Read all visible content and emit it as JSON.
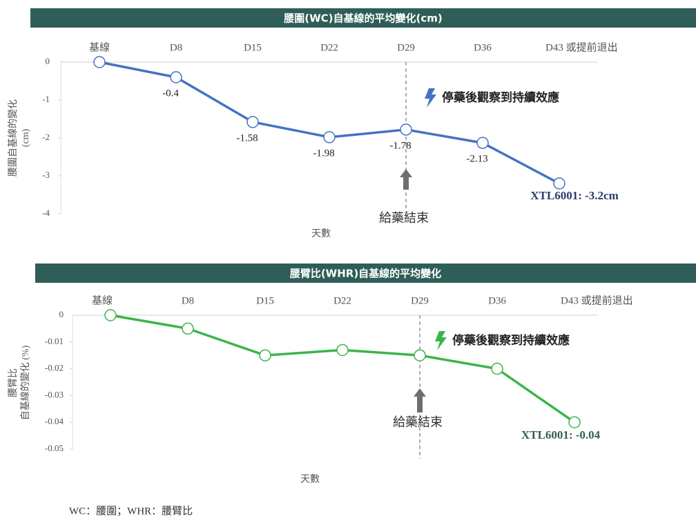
{
  "chart_data": [
    {
      "type": "line",
      "title": "腰圍(WC)自基線的平均變化(cm)",
      "categories": [
        "基線",
        "D8",
        "D15",
        "D22",
        "D29",
        "D36",
        "D43 或提前退出"
      ],
      "values": [
        0,
        -0.4,
        -1.58,
        -1.98,
        -1.78,
        -2.13,
        -3.2
      ],
      "value_labels": [
        null,
        "-0.4",
        "-1.58",
        "-1.98",
        "-1.78",
        "-2.13",
        null
      ],
      "color": "#4472c4",
      "ylim": [
        0,
        -4
      ],
      "yticks": [
        0,
        -1,
        -2,
        -3,
        -4
      ],
      "y_label": [
        "腰圍自基線的變化",
        "(cm)"
      ],
      "x_label": "天數",
      "note": "停藥後觀察到持續效應",
      "end_of_dosing": "給藥結束",
      "result": "XTL6001: -3.2cm"
    },
    {
      "type": "line",
      "title": "腰臂比(WHR)自基線的平均變化",
      "categories": [
        "基線",
        "D8",
        "D15",
        "D22",
        "D29",
        "D36",
        "D43 或提前退出"
      ],
      "values": [
        0,
        -0.005,
        -0.015,
        -0.013,
        -0.015,
        -0.02,
        -0.04
      ],
      "color": "#3ab54a",
      "ylim": [
        0,
        -0.05
      ],
      "yticks": [
        0,
        -0.01,
        -0.02,
        -0.03,
        -0.04,
        -0.05
      ],
      "y_label": [
        "腰臂比",
        "自基線的變化 (%)"
      ],
      "x_label": "天數",
      "note": "停藥後觀察到持續效應",
      "end_of_dosing": "給藥結束",
      "result": "XTL6001: -0.04"
    }
  ],
  "footnote": "WC：腰圍；WHR：腰臂比"
}
